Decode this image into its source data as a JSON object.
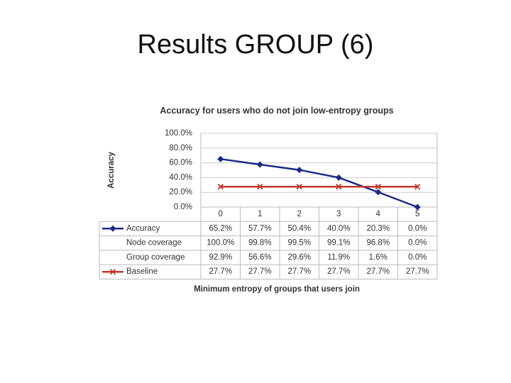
{
  "slide_title": "Results GROUP (6)",
  "chart_data": {
    "type": "line",
    "title": "Accuracy for users who do not join low-entropy groups",
    "y_label": "Accuracy",
    "x_label": "Minimum entropy of groups that users join",
    "categories": [
      "0",
      "1",
      "2",
      "3",
      "4",
      "5"
    ],
    "ylim": [
      0,
      100
    ],
    "yticks": [
      {
        "value": 0,
        "label": "0.0%"
      },
      {
        "value": 20,
        "label": "20.0%"
      },
      {
        "value": 40,
        "label": "40.0%"
      },
      {
        "value": 60,
        "label": "60.0%"
      },
      {
        "value": 80,
        "label": "80.0%"
      },
      {
        "value": 100,
        "label": "100.0%"
      }
    ],
    "grid": true,
    "series": [
      {
        "name": "Accuracy",
        "color": "#1c2a85",
        "marker": "diamond",
        "values": [
          65.2,
          57.7,
          50.4,
          40.0,
          20.3,
          0.0
        ],
        "value_labels": [
          "65.2%",
          "57.7%",
          "50.4%",
          "40.0%",
          "20.3%",
          "0.0%"
        ]
      },
      {
        "name": "Node coverage",
        "values": [
          100.0,
          99.8,
          99.5,
          99.1,
          96.8,
          0.0
        ],
        "value_labels": [
          "100.0%",
          "99.8%",
          "99.5%",
          "99.1%",
          "96.8%",
          "0.0%"
        ]
      },
      {
        "name": "Group coverage",
        "values": [
          92.9,
          56.6,
          29.6,
          11.9,
          1.6,
          0.0
        ],
        "value_labels": [
          "92.9%",
          "56.6%",
          "29.6%",
          "11.9%",
          "1.6%",
          "0.0%"
        ]
      },
      {
        "name": "Baseline",
        "color": "#c0392b",
        "marker": "x",
        "values": [
          27.7,
          27.7,
          27.7,
          27.7,
          27.7,
          27.7
        ],
        "value_labels": [
          "27.7%",
          "27.7%",
          "27.7%",
          "27.7%",
          "27.7%",
          "27.7%"
        ]
      }
    ]
  }
}
